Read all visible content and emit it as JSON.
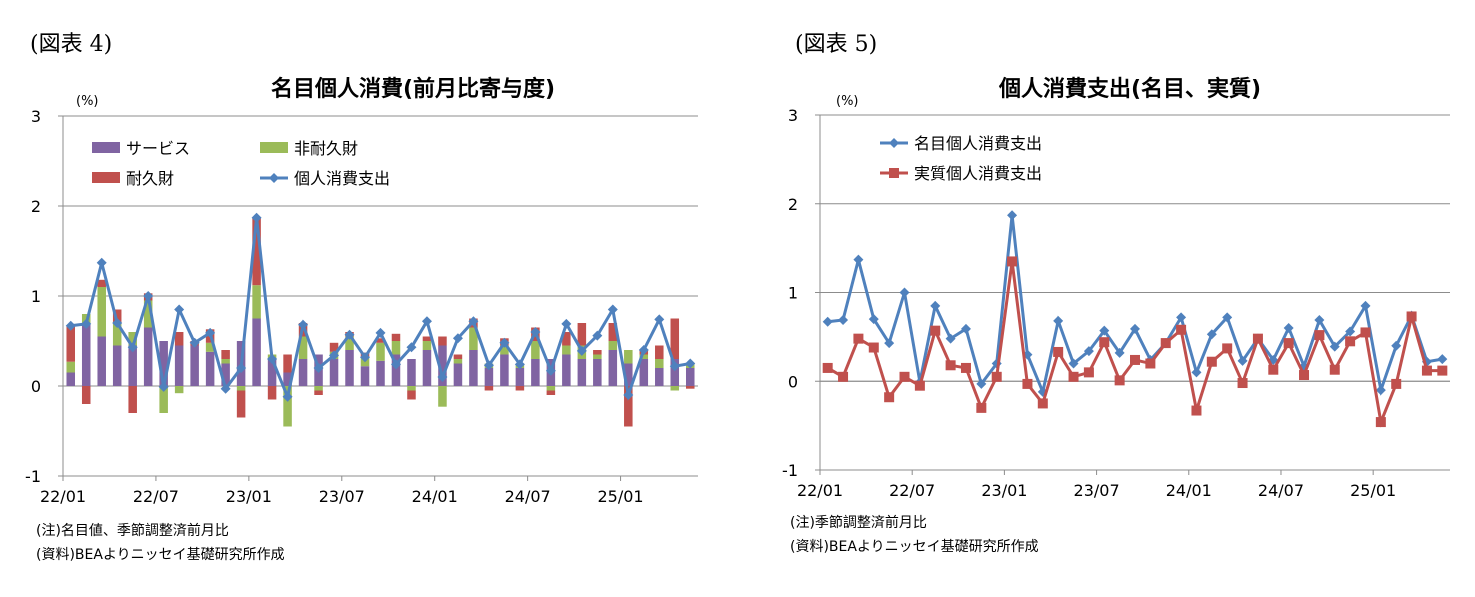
{
  "charts": [
    {
      "id": "fig4",
      "label": "(図表 4)",
      "notes": [
        "(注)名目値、季節調整済前月比",
        "(資料)BEAよりニッセイ基礎研究所作成"
      ],
      "chart_data": {
        "type": "bar",
        "title": "名目個人消費(前月比寄与度)",
        "ylabel": "(%)",
        "ylim": [
          -1,
          3
        ],
        "yticks": [
          "3",
          "2",
          "1",
          "0",
          "-1"
        ],
        "xtick_labels": [
          "22/01",
          "22/07",
          "23/01",
          "23/07",
          "24/01",
          "24/07",
          "25/01"
        ],
        "grid": true,
        "legend_position": "top-left",
        "months": [
          "22/01",
          "22/02",
          "22/03",
          "22/04",
          "22/05",
          "22/06",
          "22/07",
          "22/08",
          "22/09",
          "22/10",
          "22/11",
          "22/12",
          "23/01",
          "23/02",
          "23/03",
          "23/04",
          "23/05",
          "23/06",
          "23/07",
          "23/08",
          "23/09",
          "23/10",
          "23/11",
          "23/12",
          "24/01",
          "24/02",
          "24/03",
          "24/04",
          "24/05",
          "24/06",
          "24/07",
          "24/08",
          "24/09",
          "24/10",
          "24/11",
          "24/12",
          "25/01",
          "25/02",
          "25/03",
          "25/04",
          "25/05"
        ],
        "series": [
          {
            "name": "サービス",
            "kind": "bar",
            "color": "#8064a2",
            "values": [
              0.15,
              0.68,
              0.55,
              0.45,
              0.45,
              0.65,
              0.5,
              0.45,
              0.45,
              0.38,
              0.25,
              0.5,
              0.75,
              0.3,
              0.15,
              0.3,
              0.35,
              0.3,
              0.4,
              0.22,
              0.28,
              0.35,
              0.3,
              0.4,
              0.45,
              0.25,
              0.4,
              0.2,
              0.35,
              0.2,
              0.3,
              0.3,
              0.35,
              0.3,
              0.3,
              0.4,
              0.25,
              0.3,
              0.2,
              0.3,
              0.2
            ]
          },
          {
            "name": "非耐久財",
            "kind": "bar",
            "color": "#9bbb59",
            "values": [
              0.12,
              0.12,
              0.55,
              0.25,
              0.15,
              0.3,
              -0.3,
              -0.08,
              0.0,
              0.1,
              0.05,
              -0.05,
              0.37,
              0.05,
              -0.45,
              0.25,
              -0.05,
              0.08,
              0.15,
              0.1,
              0.2,
              0.15,
              -0.05,
              0.1,
              -0.23,
              0.05,
              0.25,
              0.05,
              0.1,
              0.05,
              0.2,
              -0.05,
              0.1,
              0.15,
              0.05,
              0.1,
              0.15,
              0.05,
              0.1,
              -0.05,
              0.05
            ]
          },
          {
            "name": "耐久財",
            "kind": "bar",
            "color": "#c0504d",
            "values": [
              0.4,
              -0.2,
              0.08,
              0.15,
              -0.3,
              0.08,
              0.0,
              0.15,
              0.05,
              0.15,
              0.1,
              -0.3,
              0.75,
              -0.15,
              0.2,
              0.15,
              -0.05,
              0.1,
              0.05,
              0.05,
              0.05,
              0.08,
              -0.1,
              0.05,
              0.1,
              0.05,
              0.1,
              -0.05,
              0.08,
              -0.05,
              0.15,
              -0.05,
              0.15,
              0.25,
              0.05,
              0.2,
              -0.45,
              0.05,
              0.15,
              0.45,
              -0.03
            ]
          },
          {
            "name": "個人消費支出",
            "kind": "line",
            "color": "#4f81bd",
            "marker": "diamond",
            "values": [
              0.67,
              0.69,
              1.37,
              0.7,
              0.43,
              1.0,
              -0.01,
              0.85,
              0.48,
              0.59,
              -0.03,
              0.2,
              1.87,
              0.3,
              -0.12,
              0.68,
              0.2,
              0.34,
              0.57,
              0.32,
              0.59,
              0.24,
              0.43,
              0.72,
              0.1,
              0.53,
              0.72,
              0.23,
              0.48,
              0.24,
              0.6,
              0.17,
              0.69,
              0.39,
              0.56,
              0.85,
              -0.1,
              0.4,
              0.74,
              0.22,
              0.25
            ]
          }
        ]
      }
    },
    {
      "id": "fig5",
      "label": "(図表 5)",
      "notes": [
        "(注)季節調整済前月比",
        "(資料)BEAよりニッセイ基礎研究所作成"
      ],
      "chart_data": {
        "type": "line",
        "title": "個人消費支出(名目、実質)",
        "ylabel": "(%)",
        "ylim": [
          -1,
          3
        ],
        "yticks": [
          "3",
          "2",
          "1",
          "0",
          "-1"
        ],
        "xtick_labels": [
          "22/01",
          "22/07",
          "23/01",
          "23/07",
          "24/01",
          "24/07",
          "25/01"
        ],
        "grid": true,
        "legend_position": "top-left",
        "months": [
          "22/01",
          "22/02",
          "22/03",
          "22/04",
          "22/05",
          "22/06",
          "22/07",
          "22/08",
          "22/09",
          "22/10",
          "22/11",
          "22/12",
          "23/01",
          "23/02",
          "23/03",
          "23/04",
          "23/05",
          "23/06",
          "23/07",
          "23/08",
          "23/09",
          "23/10",
          "23/11",
          "23/12",
          "24/01",
          "24/02",
          "24/03",
          "24/04",
          "24/05",
          "24/06",
          "24/07",
          "24/08",
          "24/09",
          "24/10",
          "24/11",
          "24/12",
          "25/01",
          "25/02",
          "25/03",
          "25/04",
          "25/05"
        ],
        "series": [
          {
            "name": "名目個人消費支出",
            "kind": "line",
            "color": "#4f81bd",
            "marker": "diamond",
            "values": [
              0.67,
              0.69,
              1.37,
              0.7,
              0.43,
              1.0,
              -0.01,
              0.85,
              0.48,
              0.59,
              -0.03,
              0.2,
              1.87,
              0.3,
              -0.12,
              0.68,
              0.2,
              0.34,
              0.57,
              0.32,
              0.59,
              0.24,
              0.43,
              0.72,
              0.1,
              0.53,
              0.72,
              0.23,
              0.48,
              0.24,
              0.6,
              0.17,
              0.69,
              0.39,
              0.56,
              0.85,
              -0.1,
              0.4,
              0.74,
              0.22,
              0.25
            ]
          },
          {
            "name": "実質個人消費支出",
            "kind": "line",
            "color": "#c0504d",
            "marker": "square",
            "values": [
              0.15,
              0.05,
              0.48,
              0.38,
              -0.18,
              0.05,
              -0.05,
              0.57,
              0.18,
              0.15,
              -0.3,
              0.05,
              1.35,
              -0.03,
              -0.25,
              0.33,
              0.05,
              0.1,
              0.44,
              0.01,
              0.24,
              0.2,
              0.43,
              0.58,
              -0.33,
              0.22,
              0.37,
              -0.02,
              0.48,
              0.13,
              0.43,
              0.07,
              0.52,
              0.13,
              0.45,
              0.55,
              -0.46,
              -0.03,
              0.73,
              0.12,
              0.12
            ]
          }
        ]
      }
    }
  ]
}
